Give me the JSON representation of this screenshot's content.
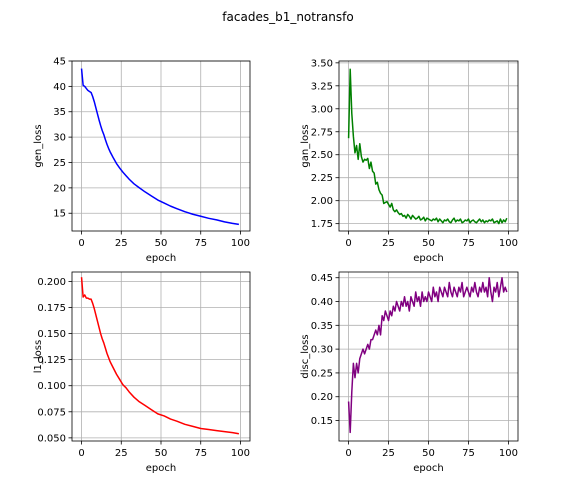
{
  "figure": {
    "title": "facades_b1_notransfo"
  },
  "chart_data": [
    {
      "type": "line",
      "xlabel": "epoch",
      "ylabel": "gen_loss",
      "color": "#0000ff",
      "xlim": [
        -6,
        106
      ],
      "ylim": [
        11.5,
        45.0
      ],
      "xticks": [
        0,
        25,
        50,
        75,
        100
      ],
      "yticks": [
        15,
        20,
        25,
        30,
        35,
        40,
        45
      ],
      "ytick_labels": [
        "15",
        "20",
        "25",
        "30",
        "35",
        "40",
        "45"
      ],
      "grid": true,
      "series": [
        {
          "x": [
            0,
            1,
            2,
            3,
            4,
            5,
            6,
            7,
            8,
            9,
            10,
            11,
            12,
            13,
            14,
            15,
            16,
            17,
            18,
            19,
            20,
            22,
            24,
            26,
            28,
            30,
            33,
            36,
            40,
            44,
            48,
            52,
            56,
            60,
            65,
            70,
            75,
            80,
            85,
            90,
            95,
            99
          ],
          "y": [
            43.5,
            40.2,
            40.0,
            39.6,
            39.2,
            39.0,
            38.8,
            38.0,
            37.0,
            35.8,
            34.6,
            33.4,
            32.3,
            31.3,
            30.5,
            29.5,
            28.6,
            27.8,
            27.1,
            26.5,
            25.9,
            24.8,
            23.9,
            23.1,
            22.4,
            21.7,
            20.8,
            20.1,
            19.2,
            18.4,
            17.6,
            17.0,
            16.4,
            15.9,
            15.3,
            14.8,
            14.4,
            14.0,
            13.7,
            13.3,
            13.0,
            12.8
          ]
        }
      ]
    },
    {
      "type": "line",
      "xlabel": "epoch",
      "ylabel": "gan_loss",
      "color": "#008000",
      "xlim": [
        -6,
        106
      ],
      "ylim": [
        1.67,
        3.52
      ],
      "xticks": [
        0,
        25,
        50,
        75,
        100
      ],
      "yticks": [
        1.75,
        2.0,
        2.25,
        2.5,
        2.75,
        3.0,
        3.25,
        3.5
      ],
      "ytick_labels": [
        "1.75",
        "2.00",
        "2.25",
        "2.50",
        "2.75",
        "3.00",
        "3.25",
        "3.50"
      ],
      "grid": true,
      "series": [
        {
          "x": [
            0,
            1,
            2,
            3,
            4,
            5,
            6,
            7,
            8,
            9,
            10,
            11,
            12,
            13,
            14,
            15,
            16,
            17,
            18,
            19,
            20,
            21,
            22,
            23,
            24,
            25,
            26,
            27,
            28,
            29,
            30,
            31,
            32,
            33,
            34,
            35,
            36,
            37,
            38,
            39,
            40,
            41,
            42,
            43,
            44,
            45,
            46,
            47,
            48,
            49,
            50,
            51,
            52,
            53,
            54,
            55,
            56,
            57,
            58,
            59,
            60,
            61,
            62,
            63,
            64,
            65,
            66,
            67,
            68,
            69,
            70,
            71,
            72,
            73,
            74,
            75,
            76,
            77,
            78,
            79,
            80,
            81,
            82,
            83,
            84,
            85,
            86,
            87,
            88,
            89,
            90,
            91,
            92,
            93,
            94,
            95,
            96,
            97,
            98,
            99
          ],
          "y": [
            2.68,
            3.43,
            2.95,
            2.7,
            2.52,
            2.6,
            2.45,
            2.62,
            2.48,
            2.42,
            2.45,
            2.44,
            2.46,
            2.35,
            2.42,
            2.32,
            2.3,
            2.18,
            2.2,
            2.12,
            2.08,
            2.06,
            1.97,
            1.98,
            1.99,
            1.96,
            1.93,
            1.97,
            1.9,
            1.88,
            1.9,
            1.87,
            1.85,
            1.86,
            1.83,
            1.84,
            1.81,
            1.85,
            1.83,
            1.8,
            1.84,
            1.82,
            1.8,
            1.81,
            1.83,
            1.79,
            1.8,
            1.82,
            1.78,
            1.81,
            1.8,
            1.79,
            1.78,
            1.8,
            1.79,
            1.81,
            1.77,
            1.8,
            1.78,
            1.76,
            1.79,
            1.78,
            1.8,
            1.77,
            1.76,
            1.79,
            1.81,
            1.77,
            1.79,
            1.78,
            1.8,
            1.76,
            1.77,
            1.79,
            1.78,
            1.8,
            1.76,
            1.78,
            1.79,
            1.77,
            1.76,
            1.78,
            1.8,
            1.77,
            1.79,
            1.76,
            1.78,
            1.77,
            1.79,
            1.78,
            1.8,
            1.76,
            1.77,
            1.78,
            1.75,
            1.8,
            1.76,
            1.79,
            1.77,
            1.81
          ]
        }
      ]
    },
    {
      "type": "line",
      "xlabel": "epoch",
      "ylabel": "l1_loss",
      "color": "#ff0000",
      "xlim": [
        -6,
        106
      ],
      "ylim": [
        0.047,
        0.209
      ],
      "xticks": [
        0,
        25,
        50,
        75,
        100
      ],
      "yticks": [
        0.05,
        0.075,
        0.1,
        0.125,
        0.15,
        0.175,
        0.2
      ],
      "ytick_labels": [
        "0.050",
        "0.075",
        "0.100",
        "0.125",
        "0.150",
        "0.175",
        "0.200"
      ],
      "grid": true,
      "series": [
        {
          "x": [
            0,
            1,
            2,
            3,
            4,
            5,
            6,
            7,
            8,
            9,
            10,
            11,
            12,
            13,
            14,
            15,
            16,
            17,
            18,
            19,
            20,
            22,
            24,
            26,
            28,
            30,
            33,
            36,
            40,
            44,
            48,
            52,
            56,
            60,
            65,
            70,
            75,
            80,
            85,
            90,
            95,
            99
          ],
          "y": [
            0.204,
            0.185,
            0.187,
            0.184,
            0.184,
            0.183,
            0.183,
            0.179,
            0.174,
            0.168,
            0.162,
            0.156,
            0.15,
            0.145,
            0.141,
            0.136,
            0.131,
            0.127,
            0.123,
            0.12,
            0.117,
            0.111,
            0.106,
            0.101,
            0.098,
            0.094,
            0.089,
            0.085,
            0.081,
            0.077,
            0.073,
            0.071,
            0.068,
            0.066,
            0.063,
            0.061,
            0.059,
            0.058,
            0.057,
            0.056,
            0.055,
            0.054
          ]
        }
      ]
    },
    {
      "type": "line",
      "xlabel": "epoch",
      "ylabel": "disc_loss",
      "color": "#800080",
      "xlim": [
        -6,
        106
      ],
      "ylim": [
        0.107,
        0.462
      ],
      "xticks": [
        0,
        25,
        50,
        75,
        100
      ],
      "yticks": [
        0.15,
        0.2,
        0.25,
        0.3,
        0.35,
        0.4,
        0.45
      ],
      "ytick_labels": [
        "0.15",
        "0.20",
        "0.25",
        "0.30",
        "0.35",
        "0.40",
        "0.45"
      ],
      "grid": true,
      "series": [
        {
          "x": [
            0,
            1,
            2,
            3,
            4,
            5,
            6,
            7,
            8,
            9,
            10,
            11,
            12,
            13,
            14,
            15,
            16,
            17,
            18,
            19,
            20,
            21,
            22,
            23,
            24,
            25,
            26,
            27,
            28,
            29,
            30,
            31,
            32,
            33,
            34,
            35,
            36,
            37,
            38,
            39,
            40,
            41,
            42,
            43,
            44,
            45,
            46,
            47,
            48,
            49,
            50,
            51,
            52,
            53,
            54,
            55,
            56,
            57,
            58,
            59,
            60,
            61,
            62,
            63,
            64,
            65,
            66,
            67,
            68,
            69,
            70,
            71,
            72,
            73,
            74,
            75,
            76,
            77,
            78,
            79,
            80,
            81,
            82,
            83,
            84,
            85,
            86,
            87,
            88,
            89,
            90,
            91,
            92,
            93,
            94,
            95,
            96,
            97,
            98,
            99
          ],
          "y": [
            0.19,
            0.125,
            0.21,
            0.27,
            0.24,
            0.27,
            0.25,
            0.28,
            0.29,
            0.3,
            0.29,
            0.3,
            0.31,
            0.3,
            0.32,
            0.32,
            0.33,
            0.34,
            0.33,
            0.35,
            0.33,
            0.37,
            0.36,
            0.38,
            0.37,
            0.36,
            0.38,
            0.37,
            0.39,
            0.38,
            0.4,
            0.39,
            0.38,
            0.4,
            0.39,
            0.41,
            0.39,
            0.4,
            0.38,
            0.41,
            0.4,
            0.39,
            0.42,
            0.4,
            0.41,
            0.39,
            0.42,
            0.4,
            0.41,
            0.4,
            0.42,
            0.41,
            0.4,
            0.43,
            0.41,
            0.42,
            0.4,
            0.43,
            0.42,
            0.41,
            0.43,
            0.42,
            0.41,
            0.44,
            0.42,
            0.41,
            0.43,
            0.42,
            0.41,
            0.43,
            0.42,
            0.44,
            0.41,
            0.42,
            0.43,
            0.42,
            0.41,
            0.43,
            0.42,
            0.44,
            0.42,
            0.41,
            0.43,
            0.42,
            0.44,
            0.42,
            0.43,
            0.41,
            0.45,
            0.42,
            0.4,
            0.43,
            0.42,
            0.44,
            0.41,
            0.43,
            0.45,
            0.42,
            0.43,
            0.42
          ]
        }
      ]
    }
  ]
}
